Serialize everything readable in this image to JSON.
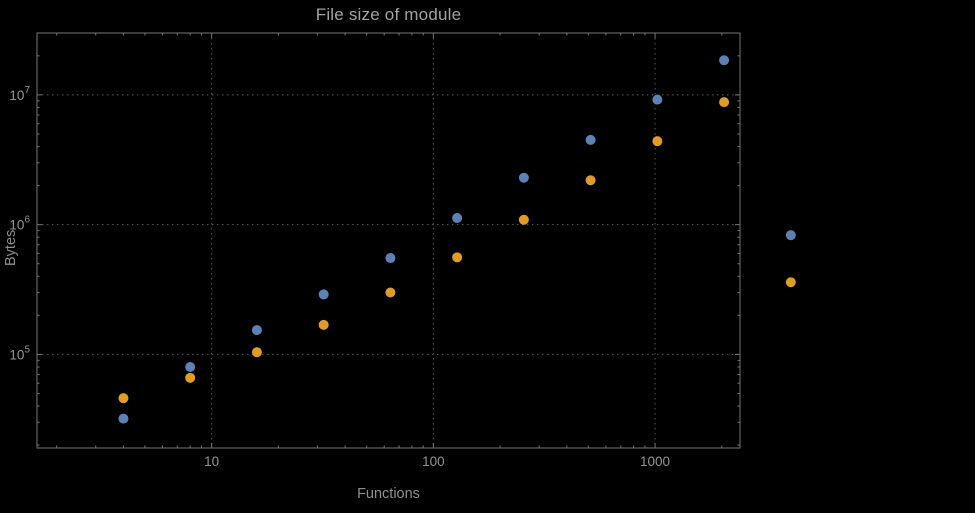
{
  "chart_data": {
    "type": "scatter",
    "title": "File size of module",
    "xlabel": "Functions",
    "ylabel": "Bytes",
    "x_scale": "log",
    "y_scale": "log",
    "xlim": [
      1.63,
      2416
    ],
    "ylim": [
      19000,
      30000000
    ],
    "xticks": [
      10,
      100,
      1000
    ],
    "xtick_labels": [
      "10",
      "100",
      "1000"
    ],
    "yticks": [
      100000,
      1000000,
      10000000
    ],
    "grid": "dotted",
    "legend": "none",
    "x": [
      4,
      8,
      16,
      32,
      64,
      128,
      256,
      512,
      1024,
      2048,
      4096
    ],
    "series": [
      {
        "name": "series-1",
        "color": "#5E81B5",
        "values": [
          32000,
          80000,
          154000,
          290000,
          553000,
          1125000,
          2300000,
          4500000,
          9200000,
          18500000,
          830000
        ]
      },
      {
        "name": "series-2",
        "color": "#E19C24",
        "values": [
          46000,
          66000,
          104000,
          169000,
          300000,
          560000,
          1090000,
          2200000,
          4400000,
          8800000,
          360000
        ]
      }
    ],
    "colors": {
      "background": "#000000",
      "frame": "#767676",
      "grid": "#5c5c5c",
      "tick_label": "#949494",
      "title_text": "#a3a3a3",
      "axis_label": "#8f8f8f"
    }
  }
}
